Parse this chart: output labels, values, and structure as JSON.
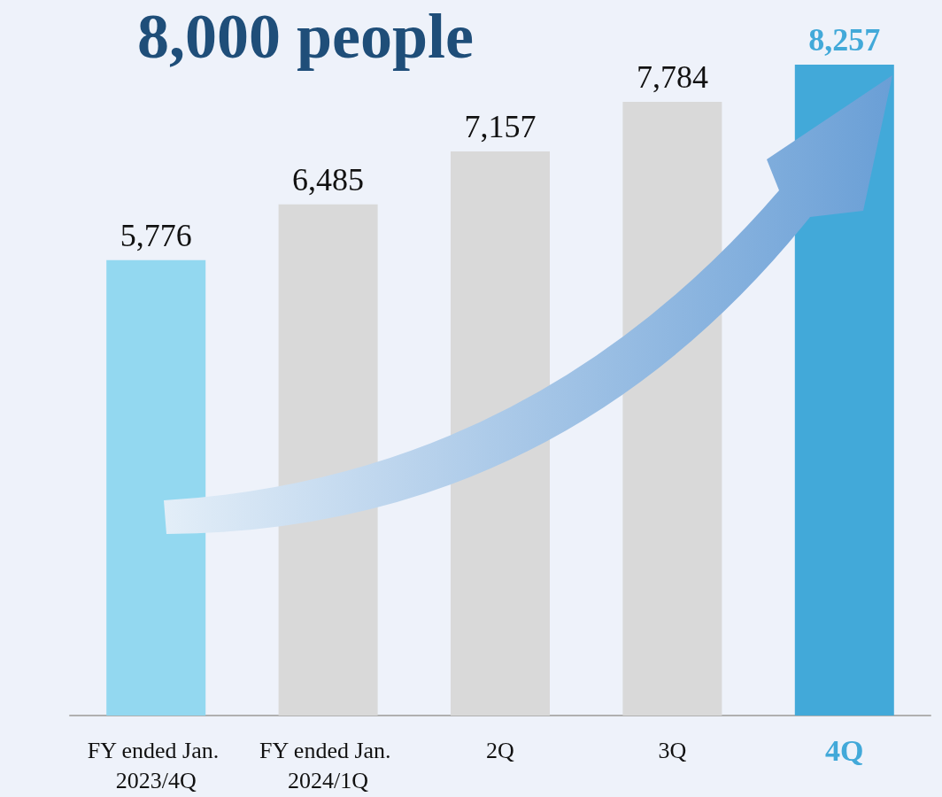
{
  "chart_data": {
    "type": "bar",
    "title": "8,000 people",
    "categories": [
      "FY ended Jan. 2023/4Q",
      "FY ended Jan. 2024/1Q",
      "2Q",
      "3Q",
      "4Q"
    ],
    "values": [
      5776,
      6485,
      7157,
      7784,
      8257
    ],
    "value_labels": [
      "5,776",
      "6,485",
      "7,157",
      "7,784",
      "8,257"
    ],
    "colors": [
      "#93d8f0",
      "#d9d9d9",
      "#d9d9d9",
      "#d9d9d9",
      "#42a9d9"
    ]
  }
}
